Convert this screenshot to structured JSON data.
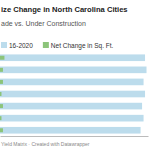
{
  "chart_data": {
    "type": "bar",
    "orientation": "horizontal",
    "title": "ize Change in North Carolina Cities",
    "subtitle": "ade vs. Under Construction",
    "source": "Yield Matrix · Created with Datawrapper",
    "categories": [
      null,
      null,
      null,
      null,
      null,
      null,
      null
    ],
    "series": [
      {
        "name": "16-2020",
        "color": "#bcdcec",
        "values": [
          98,
          99,
          97,
          98,
          96,
          97,
          95
        ]
      },
      {
        "name": "Net Change in Sq. Ft.",
        "color": "#8cc47a",
        "values": [
          3,
          2,
          2,
          1,
          2,
          1,
          2
        ]
      }
    ],
    "xlim": [
      0,
      100
    ],
    "xticks": [],
    "tick_labels": false,
    "grid": false,
    "legend": "top-left"
  }
}
